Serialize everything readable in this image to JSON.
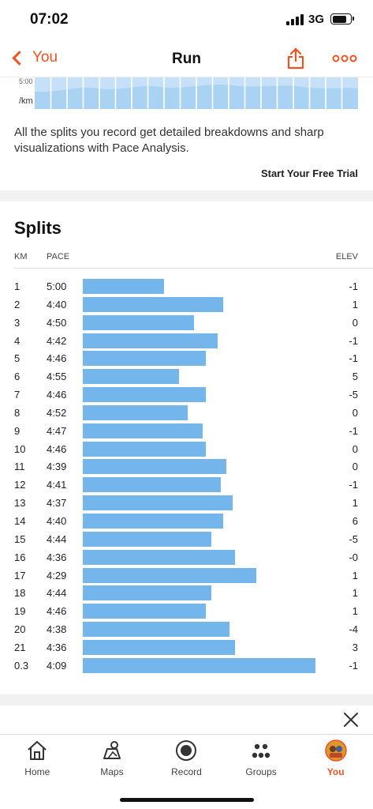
{
  "status_bar": {
    "time": "07:02",
    "network": "3G"
  },
  "nav": {
    "back_label": "You",
    "title": "Run"
  },
  "promo": {
    "pace_unit_top": "5:00",
    "pace_unit": "/km",
    "description": "All the splits you record get detailed breakdowns and sharp visualizations with Pace Analysis.",
    "cta": "Start Your Free Trial"
  },
  "splits": {
    "title": "Splits",
    "headers": {
      "km": "KM",
      "pace": "PACE",
      "elev": "ELEV"
    },
    "rows": [
      {
        "km": "1",
        "pace": "5:00",
        "elev": "-1"
      },
      {
        "km": "2",
        "pace": "4:40",
        "elev": "1"
      },
      {
        "km": "3",
        "pace": "4:50",
        "elev": "0"
      },
      {
        "km": "4",
        "pace": "4:42",
        "elev": "-1"
      },
      {
        "km": "5",
        "pace": "4:46",
        "elev": "-1"
      },
      {
        "km": "6",
        "pace": "4:55",
        "elev": "5"
      },
      {
        "km": "7",
        "pace": "4:46",
        "elev": "-5"
      },
      {
        "km": "8",
        "pace": "4:52",
        "elev": "0"
      },
      {
        "km": "9",
        "pace": "4:47",
        "elev": "-1"
      },
      {
        "km": "10",
        "pace": "4:46",
        "elev": "0"
      },
      {
        "km": "11",
        "pace": "4:39",
        "elev": "0"
      },
      {
        "km": "12",
        "pace": "4:41",
        "elev": "-1"
      },
      {
        "km": "13",
        "pace": "4:37",
        "elev": "1"
      },
      {
        "km": "14",
        "pace": "4:40",
        "elev": "6"
      },
      {
        "km": "15",
        "pace": "4:44",
        "elev": "-5"
      },
      {
        "km": "16",
        "pace": "4:36",
        "elev": "-0"
      },
      {
        "km": "17",
        "pace": "4:29",
        "elev": "1"
      },
      {
        "km": "18",
        "pace": "4:44",
        "elev": "1"
      },
      {
        "km": "19",
        "pace": "4:46",
        "elev": "1"
      },
      {
        "km": "20",
        "pace": "4:38",
        "elev": "-4"
      },
      {
        "km": "21",
        "pace": "4:36",
        "elev": "3"
      },
      {
        "km": "0.3",
        "pace": "4:09",
        "elev": "-1"
      }
    ]
  },
  "tabs": [
    {
      "label": "Home",
      "icon": "home-icon",
      "active": false
    },
    {
      "label": "Maps",
      "icon": "map-icon",
      "active": false
    },
    {
      "label": "Record",
      "icon": "record-icon",
      "active": false
    },
    {
      "label": "Groups",
      "icon": "groups-icon",
      "active": false
    },
    {
      "label": "You",
      "icon": "avatar-icon",
      "active": true
    }
  ],
  "colors": {
    "accent": "#f05323",
    "bar": "#74b6ec",
    "chart_fill": "#a9d2f3"
  }
}
